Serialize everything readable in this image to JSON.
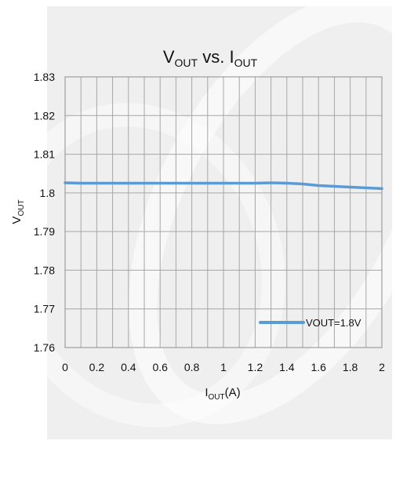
{
  "chart_data": {
    "type": "line",
    "title": {
      "main": "V",
      "sub": "OUT",
      "vs": " vs. ",
      "main2": "I",
      "sub2": "OUT"
    },
    "xlabel": {
      "main": "I",
      "sub": "OUT",
      "suffix": "(A)"
    },
    "ylabel": {
      "main": "V",
      "sub": "OUT"
    },
    "xlim": [
      0,
      2
    ],
    "ylim": [
      1.76,
      1.83
    ],
    "x_ticks": [
      "0",
      "0.2",
      "0.4",
      "0.6",
      "0.8",
      "1",
      "1.2",
      "1.4",
      "1.6",
      "1.8",
      "2"
    ],
    "y_ticks": [
      "1.83",
      "1.82",
      "1.81",
      "1.8",
      "1.79",
      "1.78",
      "1.77",
      "1.76"
    ],
    "grid": true,
    "legend_position": "bottom-right",
    "series": [
      {
        "name": "VOUT=1.8V",
        "color": "#5b9bd5",
        "x": [
          0,
          0.1,
          0.2,
          0.4,
          0.6,
          0.8,
          1.0,
          1.2,
          1.3,
          1.4,
          1.5,
          1.6,
          1.8,
          2.0
        ],
        "y": [
          1.8026,
          1.8025,
          1.8025,
          1.8025,
          1.8025,
          1.8025,
          1.8025,
          1.8025,
          1.8026,
          1.8025,
          1.8023,
          1.8019,
          1.8015,
          1.8011
        ]
      }
    ]
  }
}
